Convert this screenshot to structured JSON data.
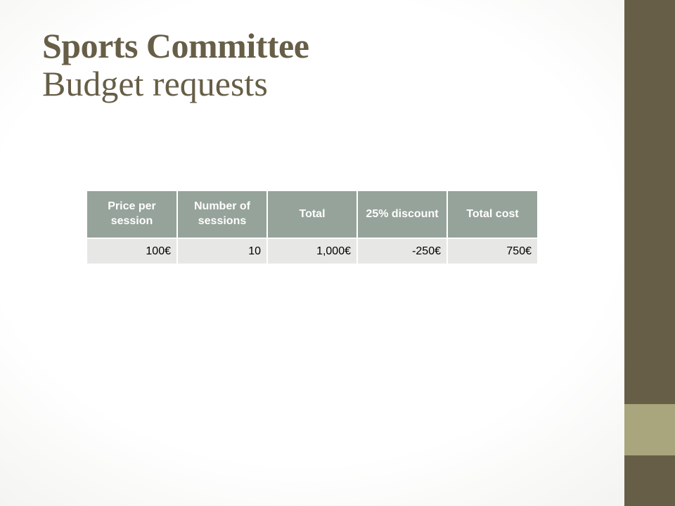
{
  "slide": {
    "title_main": "Sports Committee",
    "title_sub": "Budget requests"
  },
  "table": {
    "headers": [
      "Price per session",
      "Number of sessions",
      "Total",
      "25% discount",
      "Total cost"
    ],
    "rows": [
      [
        "100€",
        "10",
        "1,000€",
        "-250€",
        "750€"
      ]
    ]
  },
  "colors": {
    "title": "#675e47",
    "sidebar": "#675e47",
    "sidebar_band": "#a9a57c",
    "header_bg": "#96a39a",
    "cell_bg": "#e7e8e6"
  }
}
